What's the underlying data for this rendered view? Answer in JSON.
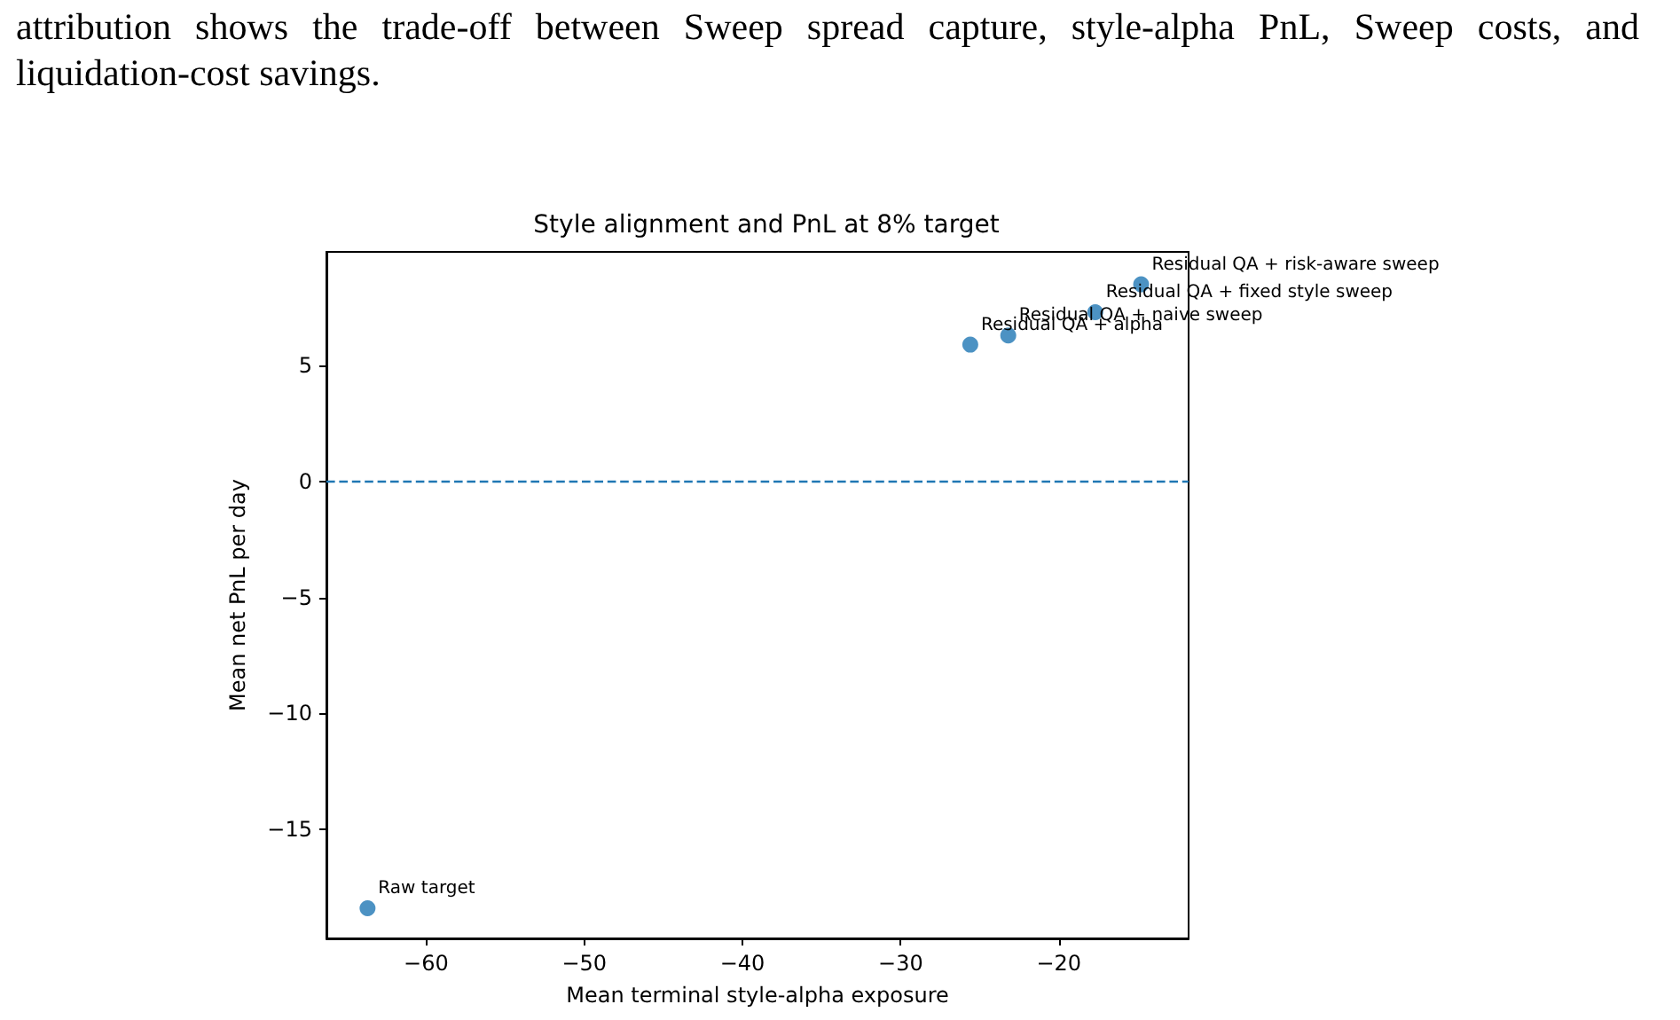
{
  "chart_data": {
    "type": "scatter",
    "title": "Style alignment and PnL at 8% target",
    "xlabel": "Mean terminal style-alpha exposure",
    "ylabel": "Mean net PnL per day",
    "x": [
      -63.7,
      -25.6,
      -23.2,
      -17.7,
      -14.8
    ],
    "series": [
      {
        "color": "#1f77b4",
        "values": [
          -18.4,
          5.9,
          6.3,
          7.3,
          8.5
        ]
      }
    ],
    "xlim": [
      -66.3,
      -11.8
    ],
    "ylim": [
      -19.7,
      9.9
    ],
    "xticks": [
      -60,
      -50,
      -40,
      -30,
      -20
    ],
    "yticks": [
      -15,
      -10,
      -5,
      0,
      5
    ],
    "grid": false,
    "marker": "circle",
    "ref_lines": [
      {
        "axis": "y",
        "value": 0,
        "color": "#1f77b4",
        "line_style": "dashed"
      }
    ],
    "annotations": [
      "attribution shows the trade-off between Sweep spread capture, style-alpha PnL, Sweep costs, and liquidation-cost savings.",
      {
        "text": "Raw target",
        "x": -63.7,
        "y": -18.4
      },
      {
        "text": "Residual QA + alpha",
        "x": -25.6,
        "y": 5.9
      },
      {
        "text": "Residual QA + naive sweep",
        "x": -23.2,
        "y": 6.3
      },
      {
        "text": "Residual QA + fixed style sweep",
        "x": -17.7,
        "y": 7.3
      },
      {
        "text": "Residual QA + risk-aware sweep",
        "x": -14.8,
        "y": 8.5
      }
    ]
  }
}
